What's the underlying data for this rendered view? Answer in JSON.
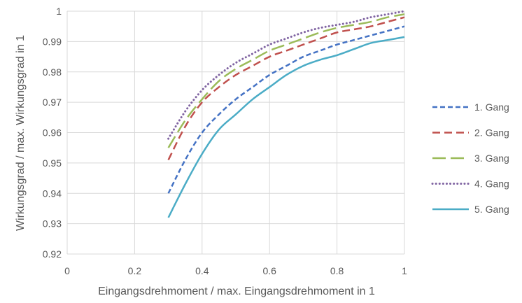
{
  "chart_data": {
    "type": "line",
    "title": "",
    "xlabel": "Eingangsdrehmoment / max. Eingangsdrehmoment in 1",
    "ylabel": "Wirkungsgrad / max. Wirkungsgrad in 1",
    "xlim": [
      0,
      1
    ],
    "ylim": [
      0.92,
      1
    ],
    "xticks": [
      0,
      0.2,
      0.4,
      0.6,
      0.8,
      1
    ],
    "xtick_labels": [
      "0",
      "0.2",
      "0.4",
      "0.6",
      "0.8",
      "1"
    ],
    "yticks": [
      0.92,
      0.93,
      0.94,
      0.95,
      0.96,
      0.97,
      0.98,
      0.99,
      1
    ],
    "ytick_labels": [
      "0.92",
      "0.93",
      "0.94",
      "0.95",
      "0.96",
      "0.97",
      "0.98",
      "0.99",
      "1"
    ],
    "grid": true,
    "legend_position": "right",
    "series": [
      {
        "name": "1. Gang",
        "color": "#4472C4",
        "dash": "short-dash",
        "x": [
          0.3,
          0.35,
          0.4,
          0.45,
          0.5,
          0.55,
          0.6,
          0.65,
          0.7,
          0.75,
          0.8,
          0.85,
          0.9,
          0.95,
          1.0
        ],
        "y": [
          0.94,
          0.951,
          0.96,
          0.966,
          0.971,
          0.975,
          0.979,
          0.982,
          0.985,
          0.987,
          0.989,
          0.9905,
          0.992,
          0.9935,
          0.995
        ]
      },
      {
        "name": "2. Gang",
        "color": "#C0504D",
        "dash": "dash",
        "x": [
          0.3,
          0.35,
          0.4,
          0.45,
          0.5,
          0.55,
          0.6,
          0.65,
          0.7,
          0.75,
          0.8,
          0.85,
          0.9,
          0.95,
          1.0
        ],
        "y": [
          0.951,
          0.962,
          0.97,
          0.975,
          0.979,
          0.982,
          0.985,
          0.987,
          0.989,
          0.991,
          0.993,
          0.994,
          0.995,
          0.9965,
          0.998
        ]
      },
      {
        "name": "3. Gang",
        "color": "#9BBB59",
        "dash": "long-dash",
        "x": [
          0.3,
          0.35,
          0.4,
          0.45,
          0.5,
          0.55,
          0.6,
          0.65,
          0.7,
          0.75,
          0.8,
          0.85,
          0.9,
          0.95,
          1.0
        ],
        "y": [
          0.955,
          0.964,
          0.971,
          0.977,
          0.981,
          0.984,
          0.987,
          0.989,
          0.991,
          0.993,
          0.9945,
          0.9955,
          0.9965,
          0.998,
          0.999
        ]
      },
      {
        "name": "4. Gang",
        "color": "#8064A2",
        "dash": "dot",
        "x": [
          0.3,
          0.35,
          0.4,
          0.45,
          0.5,
          0.55,
          0.6,
          0.65,
          0.7,
          0.75,
          0.8,
          0.85,
          0.9,
          0.95,
          1.0
        ],
        "y": [
          0.958,
          0.967,
          0.974,
          0.979,
          0.983,
          0.986,
          0.989,
          0.991,
          0.993,
          0.9945,
          0.9955,
          0.9965,
          0.998,
          0.999,
          1.0
        ]
      },
      {
        "name": "5. Gang",
        "color": "#4BACC6",
        "dash": "solid",
        "x": [
          0.3,
          0.35,
          0.4,
          0.45,
          0.5,
          0.55,
          0.6,
          0.65,
          0.7,
          0.75,
          0.8,
          0.85,
          0.9,
          0.95,
          1.0
        ],
        "y": [
          0.932,
          0.943,
          0.953,
          0.961,
          0.966,
          0.971,
          0.975,
          0.979,
          0.982,
          0.984,
          0.9855,
          0.9875,
          0.9895,
          0.9905,
          0.9915
        ]
      }
    ]
  }
}
